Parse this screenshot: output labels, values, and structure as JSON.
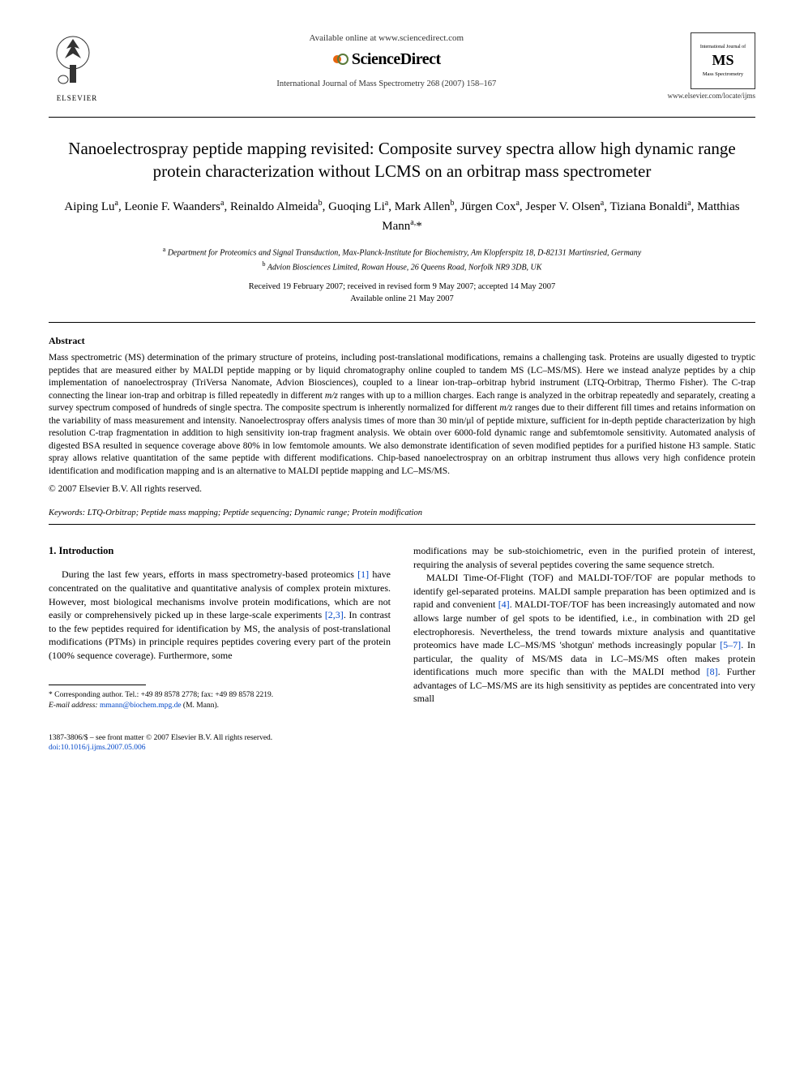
{
  "header": {
    "available_online": "Available online at www.sciencedirect.com",
    "sciencedirect": "ScienceDirect",
    "journal_ref": "International Journal of Mass Spectrometry 268 (2007) 158–167",
    "elsevier_label": "ELSEVIER",
    "journal_logo_top": "International Journal of",
    "journal_logo_ms": "MS",
    "journal_logo_bottom": "Mass Spectrometry",
    "journal_url": "www.elsevier.com/locate/ijms"
  },
  "title": "Nanoelectrospray peptide mapping revisited: Composite survey spectra allow high dynamic range protein characterization without LCMS on an orbitrap mass spectrometer",
  "authors_html": "Aiping Lu<sup>a</sup>, Leonie F. Waanders<sup>a</sup>, Reinaldo Almeida<sup>b</sup>, Guoqing Li<sup>a</sup>, Mark Allen<sup>b</sup>, Jürgen Cox<sup>a</sup>, Jesper V. Olsen<sup>a</sup>, Tiziana Bonaldi<sup>a</sup>, Matthias Mann<sup>a,</sup>*",
  "affiliations": {
    "a": "Department for Proteomics and Signal Transduction, Max-Planck-Institute for Biochemistry, Am Klopferspitz 18, D-82131 Martinsried, Germany",
    "b": "Advion Biosciences Limited, Rowan House, 26 Queens Road, Norfolk NR9 3DB, UK"
  },
  "dates": {
    "line1": "Received 19 February 2007; received in revised form 9 May 2007; accepted 14 May 2007",
    "line2": "Available online 21 May 2007"
  },
  "abstract": {
    "heading": "Abstract",
    "body": "Mass spectrometric (MS) determination of the primary structure of proteins, including post-translational modifications, remains a challenging task. Proteins are usually digested to tryptic peptides that are measured either by MALDI peptide mapping or by liquid chromatography online coupled to tandem MS (LC–MS/MS). Here we instead analyze peptides by a chip implementation of nanoelectrospray (TriVersa Nanomate, Advion Biosciences), coupled to a linear ion-trap–orbitrap hybrid instrument (LTQ-Orbitrap, Thermo Fisher). The C-trap connecting the linear ion-trap and orbitrap is filled repeatedly in different m/z ranges with up to a million charges. Each range is analyzed in the orbitrap repeatedly and separately, creating a survey spectrum composed of hundreds of single spectra. The composite spectrum is inherently normalized for different m/z ranges due to their different fill times and retains information on the variability of mass measurement and intensity. Nanoelectrospray offers analysis times of more than 30 min/μl of peptide mixture, sufficient for in-depth peptide characterization by high resolution C-trap fragmentation in addition to high sensitivity ion-trap fragment analysis. We obtain over 6000-fold dynamic range and subfemtomole sensitivity. Automated analysis of digested BSA resulted in sequence coverage above 80% in low femtomole amounts. We also demonstrate identification of seven modified peptides for a purified histone H3 sample. Static spray allows relative quantitation of the same peptide with different modifications. Chip-based nanoelectrospray on an orbitrap instrument thus allows very high confidence protein identification and modification mapping and is an alternative to MALDI peptide mapping and LC–MS/MS.",
    "copyright": "© 2007 Elsevier B.V. All rights reserved."
  },
  "keywords": {
    "label": "Keywords:",
    "list": "LTQ-Orbitrap; Peptide mass mapping; Peptide sequencing; Dynamic range; Protein modification"
  },
  "intro": {
    "heading": "1. Introduction",
    "col1_p1_pre": "During the last few years, efforts in mass spectrometry-based proteomics ",
    "col1_ref1": "[1]",
    "col1_p1_mid": " have concentrated on the qualitative and quantitative analysis of complex protein mixtures. However, most biological mechanisms involve protein modifications, which are not easily or comprehensively picked up in these large-scale experiments ",
    "col1_ref23": "[2,3]",
    "col1_p1_post": ". In contrast to the few peptides required for identification by MS, the analysis of post-translational modifications (PTMs) in principle requires peptides covering every part of the protein (100% sequence coverage). Furthermore, some",
    "col2_p1": "modifications may be sub-stoichiometric, even in the purified protein of interest, requiring the analysis of several peptides covering the same sequence stretch.",
    "col2_p2_pre": "MALDI Time-Of-Flight (TOF) and MALDI-TOF/TOF are popular methods to identify gel-separated proteins. MALDI sample preparation has been optimized and is rapid and convenient ",
    "col2_ref4": "[4]",
    "col2_p2_mid": ". MALDI-TOF/TOF has been increasingly automated and now allows large number of gel spots to be identified, i.e., in combination with 2D gel electrophoresis. Nevertheless, the trend towards mixture analysis and quantitative proteomics have made LC–MS/MS 'shotgun' methods increasingly popular ",
    "col2_ref57": "[5–7]",
    "col2_p2_mid2": ". In particular, the quality of MS/MS data in LC–MS/MS often makes protein identifications much more specific than with the MALDI method ",
    "col2_ref8": "[8]",
    "col2_p2_post": ". Further advantages of LC–MS/MS are its high sensitivity as peptides are concentrated into very small"
  },
  "footnote": {
    "corresponding": "* Corresponding author. Tel.: +49 89 8578 2778; fax: +49 89 8578 2219.",
    "email_label": "E-mail address:",
    "email": "mmann@biochem.mpg.de",
    "email_suffix": "(M. Mann)."
  },
  "footer": {
    "line1": "1387-3806/$ – see front matter © 2007 Elsevier B.V. All rights reserved.",
    "doi": "doi:10.1016/j.ijms.2007.05.006"
  },
  "colors": {
    "text": "#000000",
    "link": "#0046c8",
    "background": "#ffffff",
    "elsevier_orange": "#e8640e"
  }
}
